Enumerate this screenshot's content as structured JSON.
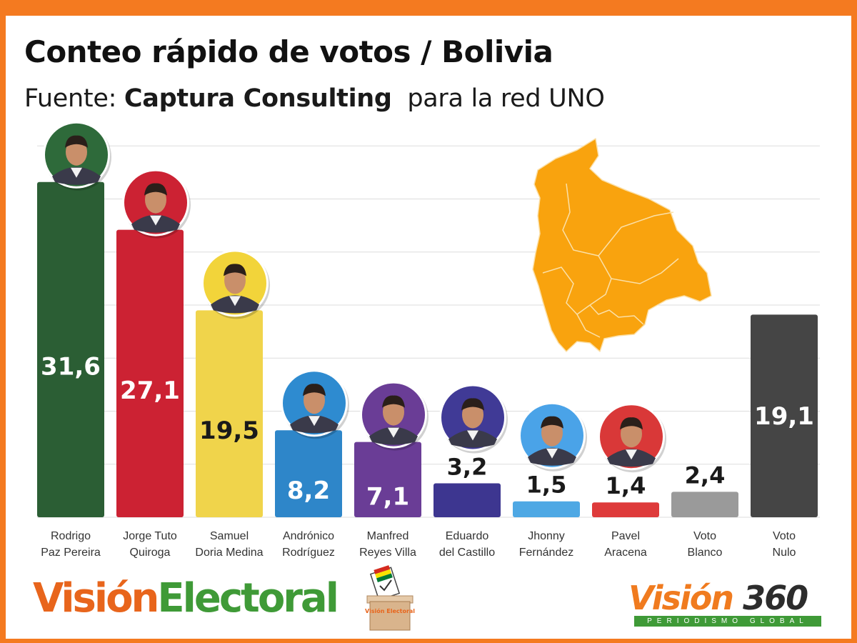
{
  "header": {
    "title": "Conteo rápido de votos / Bolivia",
    "source_prefix": "Fuente:",
    "source_name": "Captura Consulting",
    "source_suffix": "para la red UNO"
  },
  "chart_data": {
    "type": "bar",
    "title": "Conteo rápido de votos / Bolivia",
    "subtitle": "Fuente: Captura Consulting para la red UNO",
    "xlabel": "",
    "ylabel": "",
    "ylim": [
      0,
      35
    ],
    "grid": true,
    "categories": [
      [
        "Rodrigo",
        "Paz Pereira"
      ],
      [
        "Jorge Tuto",
        "Quiroga"
      ],
      [
        "Samuel",
        "Doria Medina"
      ],
      [
        "Andrónico",
        "Rodríguez"
      ],
      [
        "Manfred",
        "Reyes Villa"
      ],
      [
        "Eduardo",
        "del Castillo"
      ],
      [
        "Jhonny",
        "Fernández"
      ],
      [
        "Pavel",
        "Aracena"
      ],
      [
        "Voto",
        "Blanco"
      ],
      [
        "Voto",
        "Nulo"
      ]
    ],
    "values": [
      31.6,
      27.1,
      19.5,
      8.2,
      7.1,
      3.2,
      1.5,
      1.4,
      2.4,
      19.1
    ],
    "value_labels": [
      "31,6",
      "27,1",
      "19,5",
      "8,2",
      "7,1",
      "3,2",
      "1,5",
      "1,4",
      "2,4",
      "19,1"
    ],
    "colors": [
      "#2b5e34",
      "#cc2233",
      "#f0d44b",
      "#2e86c9",
      "#6a3d96",
      "#3d3690",
      "#4ea8e4",
      "#de3a3a",
      "#9a9a9a",
      "#454545"
    ],
    "label_inside": [
      true,
      true,
      true,
      true,
      true,
      false,
      false,
      false,
      false,
      true
    ],
    "label_dark": [
      false,
      false,
      true,
      false,
      false,
      true,
      true,
      true,
      true,
      false
    ],
    "has_photo": [
      true,
      true,
      true,
      true,
      true,
      true,
      true,
      true,
      false,
      false
    ],
    "photo_bg": [
      "#2e6a3a",
      "#cc2233",
      "#f2d43a",
      "#2e8bd0",
      "#6a3d96",
      "#403a96",
      "#4aa3e8",
      "#d93838"
    ]
  },
  "branding": {
    "logo_left_1": "Visión",
    "logo_left_2": "Electoral",
    "ballot_text": "Visión Electoral",
    "logo_right_1": "Visión",
    "logo_right_2": "360",
    "tagline": "PERIODISMO GLOBAL"
  }
}
